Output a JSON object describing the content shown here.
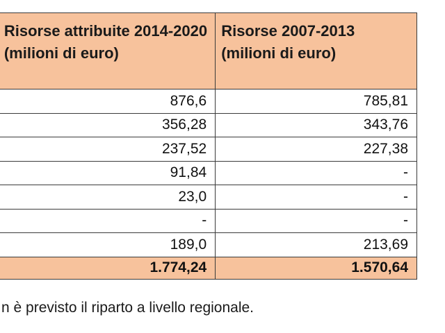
{
  "table": {
    "headers": {
      "col_2014_2020": "Risorse attribuite 2014-2020 (milioni di euro)",
      "col_2007_2013": "Risorse 2007-2013 (milioni di euro)"
    },
    "rows": [
      {
        "a": "876,6",
        "b": "785,81"
      },
      {
        "a": "356,28",
        "b": "343,76"
      },
      {
        "a": "237,52",
        "b": "227,38"
      },
      {
        "a": "91,84",
        "b": "-"
      },
      {
        "a": "23,0",
        "b": "-"
      },
      {
        "a": "-",
        "b": "-"
      },
      {
        "a": "189,0",
        "b": "213,69"
      }
    ],
    "total": {
      "a": "1.774,24",
      "b": "1.570,64"
    }
  },
  "footnote": "n è previsto il riparto a livello regionale."
}
